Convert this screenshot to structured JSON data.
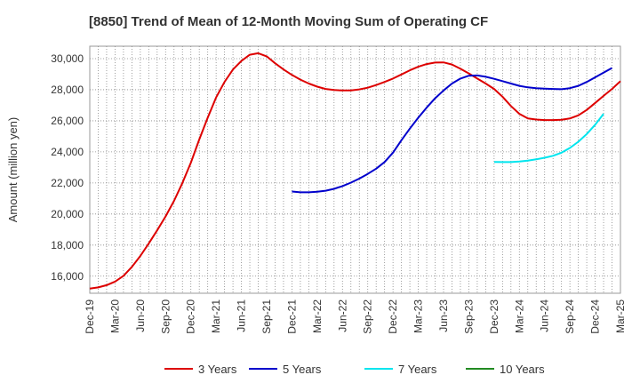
{
  "chart_data": {
    "type": "line",
    "title": "[8850]  Trend of Mean of 12-Month Moving Sum of Operating CF",
    "xlabel": "",
    "ylabel": "Amount (million yen)",
    "ylim": [
      14900,
      30800
    ],
    "y_ticks": [
      16000,
      18000,
      20000,
      22000,
      24000,
      26000,
      28000,
      30000
    ],
    "y_tick_labels": [
      "16,000",
      "18,000",
      "20,000",
      "22,000",
      "24,000",
      "26,000",
      "28,000",
      "30,000"
    ],
    "x_ticks": [
      "Dec-19",
      "Mar-20",
      "Jun-20",
      "Sep-20",
      "Dec-20",
      "Mar-21",
      "Jun-21",
      "Sep-21",
      "Dec-21",
      "Mar-22",
      "Jun-22",
      "Sep-22",
      "Dec-22",
      "Mar-23",
      "Jun-23",
      "Sep-23",
      "Dec-23",
      "Mar-24",
      "Jun-24",
      "Sep-24",
      "Dec-24",
      "Mar-25"
    ],
    "grid": true,
    "legend_position": "bottom",
    "series": [
      {
        "name": "3 Years",
        "color": "#dd0000",
        "start_month_index": 0,
        "values": [
          15200,
          15280,
          15420,
          15650,
          16020,
          16600,
          17300,
          18100,
          18950,
          19850,
          20850,
          22000,
          23300,
          24800,
          26200,
          27500,
          28500,
          29300,
          29850,
          30250,
          30350,
          30150,
          29700,
          29300,
          28950,
          28650,
          28400,
          28200,
          28050,
          27980,
          27950,
          27960,
          28020,
          28130,
          28300,
          28500,
          28720,
          28980,
          29250,
          29480,
          29650,
          29750,
          29760,
          29620,
          29350,
          29050,
          28720,
          28400,
          28050,
          27550,
          26950,
          26450,
          26150,
          26080,
          26050,
          26050,
          26070,
          26150,
          26350,
          26700,
          27150,
          27600,
          28050,
          28550
        ]
      },
      {
        "name": "5 Years",
        "color": "#0000cc",
        "start_month_index": 24,
        "values": [
          21450,
          21400,
          21400,
          21430,
          21500,
          21620,
          21800,
          22020,
          22280,
          22580,
          22920,
          23350,
          23950,
          24750,
          25500,
          26200,
          26850,
          27450,
          27950,
          28400,
          28720,
          28900,
          28920,
          28830,
          28700,
          28550,
          28400,
          28250,
          28150,
          28100,
          28070,
          28050,
          28030,
          28100,
          28250,
          28500,
          28800,
          29100,
          29400
        ]
      },
      {
        "name": "7 Years",
        "color": "#00e5ee",
        "start_month_index": 48,
        "values": [
          23350,
          23340,
          23340,
          23380,
          23440,
          23520,
          23620,
          23750,
          23950,
          24250,
          24650,
          25150,
          25750,
          26450
        ]
      },
      {
        "name": "10 Years",
        "color": "#228b22",
        "start_month_index": 0,
        "values": []
      }
    ]
  }
}
